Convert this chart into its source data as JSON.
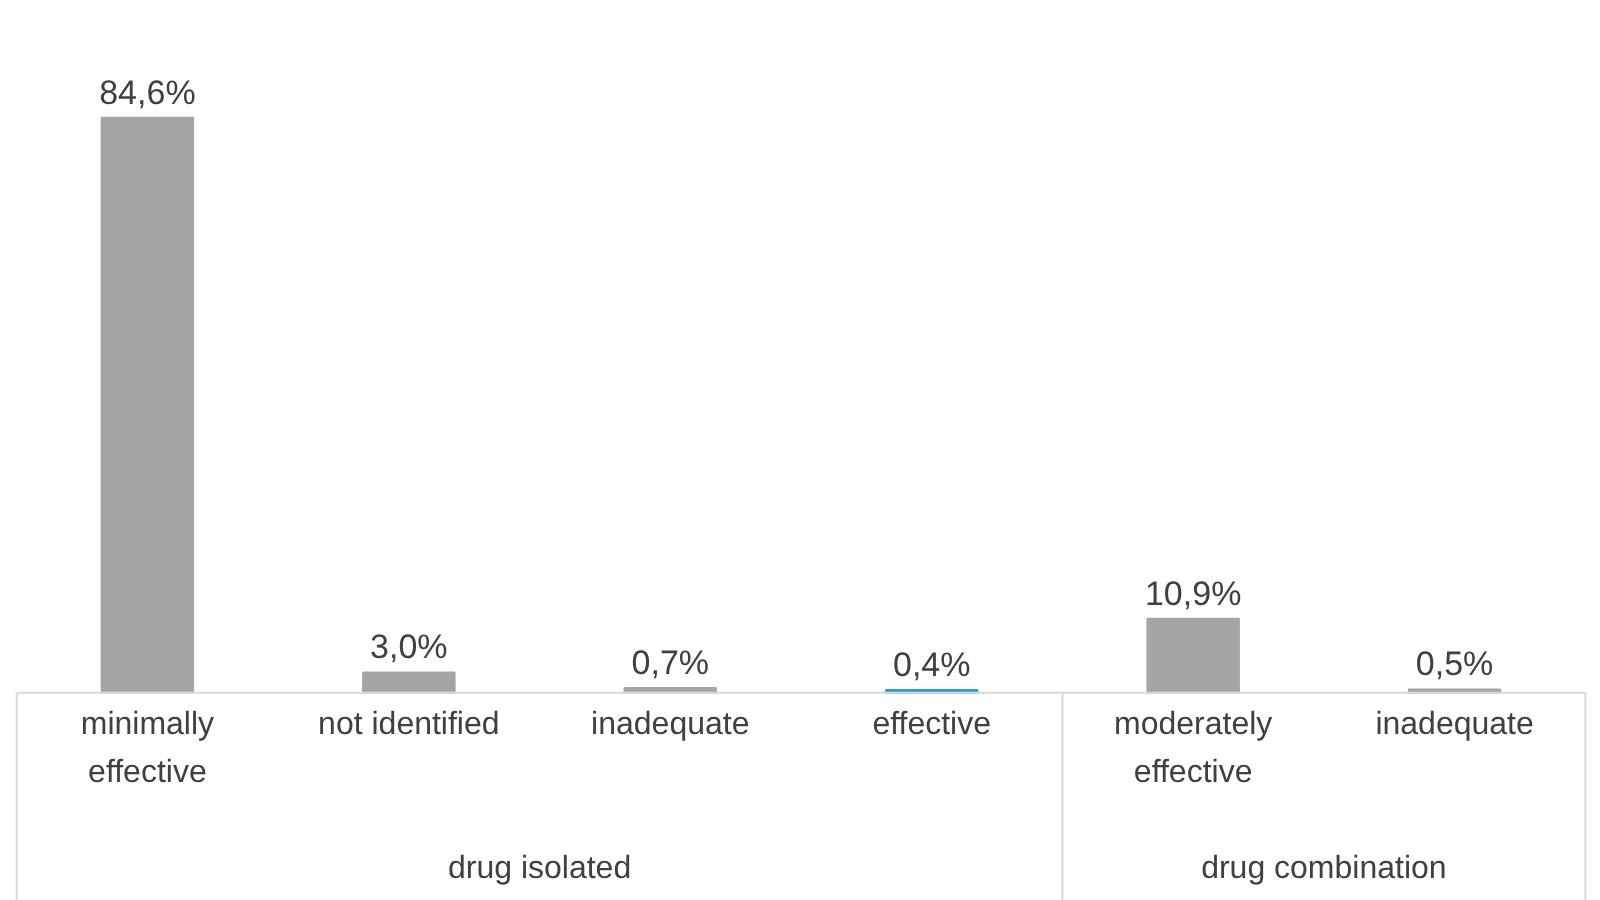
{
  "chart_data": {
    "type": "bar",
    "categories": [
      "minimally effective",
      "not identified",
      "inadequate",
      "effective",
      "moderately effective",
      "inadequate"
    ],
    "values": [
      84.6,
      3.0,
      0.7,
      0.4,
      10.9,
      0.5
    ],
    "value_labels": [
      "84,6%",
      "3,0%",
      "0,7%",
      "0,4%",
      "10,9%",
      "0,5%"
    ],
    "colors": [
      "#a5a5a5",
      "#a5a5a5",
      "#a5a5a5",
      "#2e9bd6",
      "#a5a5a5",
      "#a5a5a5"
    ],
    "annotations": [
      "drug isolated",
      "drug combination"
    ],
    "grid": false
  }
}
